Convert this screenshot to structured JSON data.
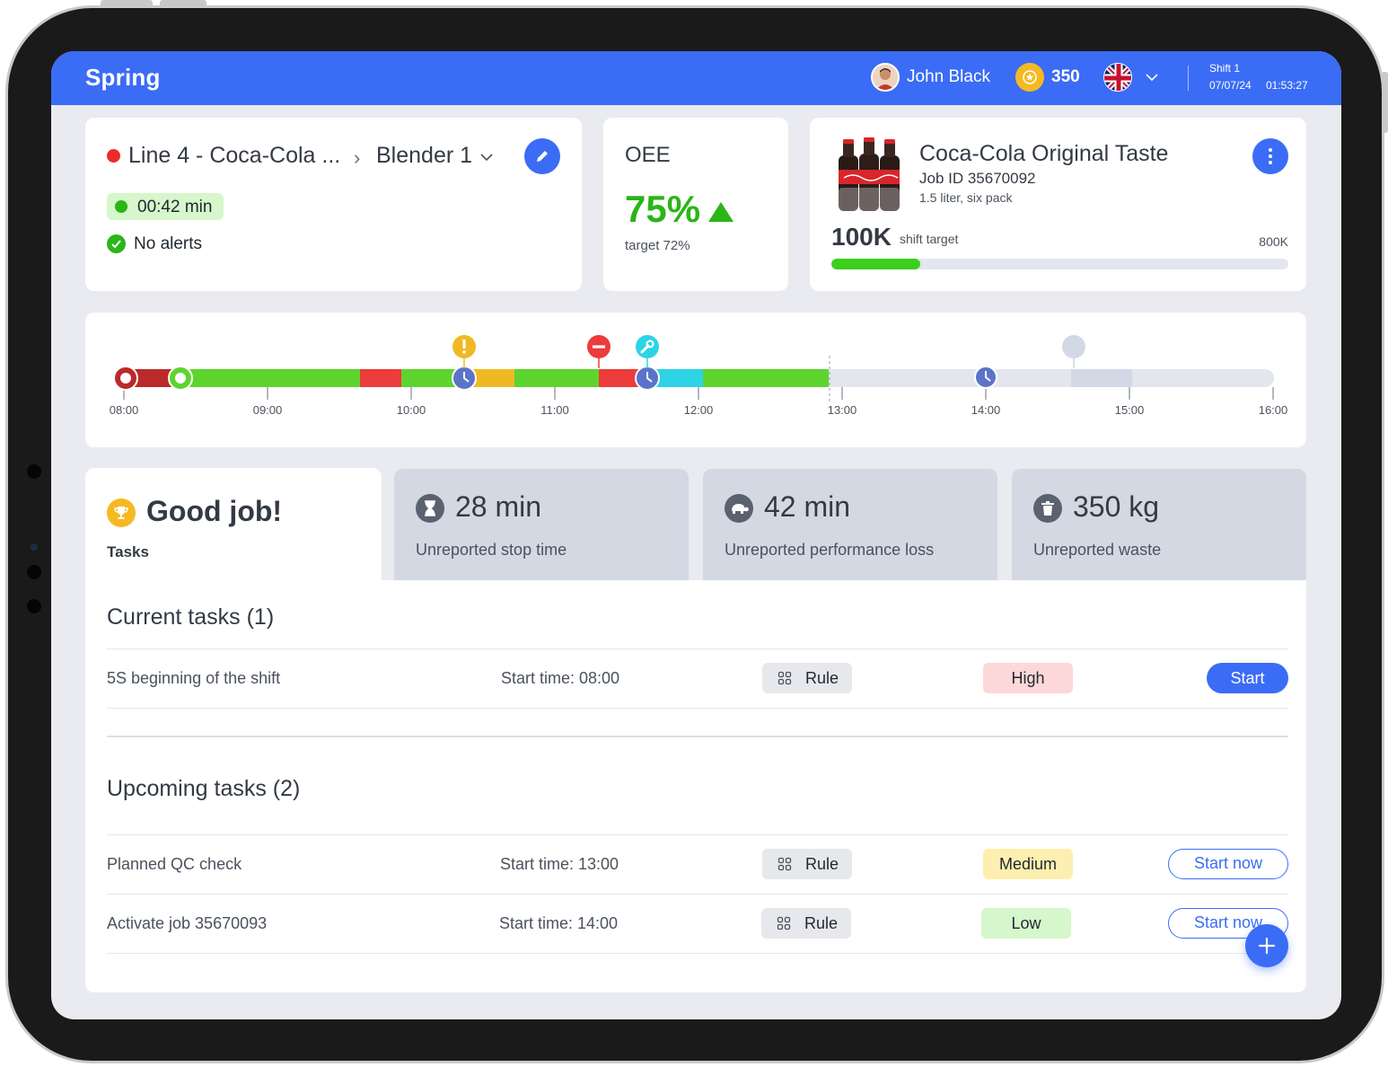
{
  "header": {
    "brand": "Spring",
    "user_name": "John Black",
    "points": "350",
    "shift_label": "Shift 1",
    "shift_date": "07/07/24",
    "shift_time": "01:53:27"
  },
  "line_card": {
    "line_name": "Line 4 - Coca-Cola ...",
    "machine": "Blender 1",
    "timer": "00:42 min",
    "alerts": "No alerts"
  },
  "oee": {
    "title": "OEE",
    "value": "75%",
    "target": "target 72%"
  },
  "product": {
    "name": "Coca-Cola Original Taste",
    "job_id": "Job ID 35670092",
    "size": "1.5 liter, six pack",
    "target_value": "100K",
    "target_label": "shift target",
    "target_max": "800K",
    "progress_fraction": 0.195
  },
  "timeline": {
    "ticks": [
      "08:00",
      "09:00",
      "10:00",
      "11:00",
      "12:00",
      "13:00",
      "14:00",
      "15:00",
      "16:00"
    ]
  },
  "kpis": {
    "active_title": "Good job!",
    "active_sub": "Tasks",
    "stop_value": "28 min",
    "stop_label": "Unreported stop time",
    "perf_value": "42 min",
    "perf_label": "Unreported performance loss",
    "waste_value": "350 kg",
    "waste_label": "Unreported waste"
  },
  "current_tasks": {
    "title": "Current tasks (1)",
    "items": [
      {
        "name": "5S beginning of the shift",
        "time": "Start time: 08:00",
        "type": "Rule",
        "priority": "High",
        "action": "Start"
      }
    ]
  },
  "upcoming_tasks": {
    "title": "Upcoming tasks (2)",
    "items": [
      {
        "name": "Planned QC check",
        "time": "Start time: 13:00",
        "type": "Rule",
        "priority": "Medium",
        "action": "Start now"
      },
      {
        "name": "Activate job 35670093",
        "time": "Start time: 14:00",
        "type": "Rule",
        "priority": "Low",
        "action": "Start now"
      }
    ]
  },
  "colors": {
    "accent": "#3b6cf6",
    "good": "#2bb518",
    "high": "#fdd8d8",
    "medium": "#fdefb0",
    "low": "#d6f6cb"
  }
}
